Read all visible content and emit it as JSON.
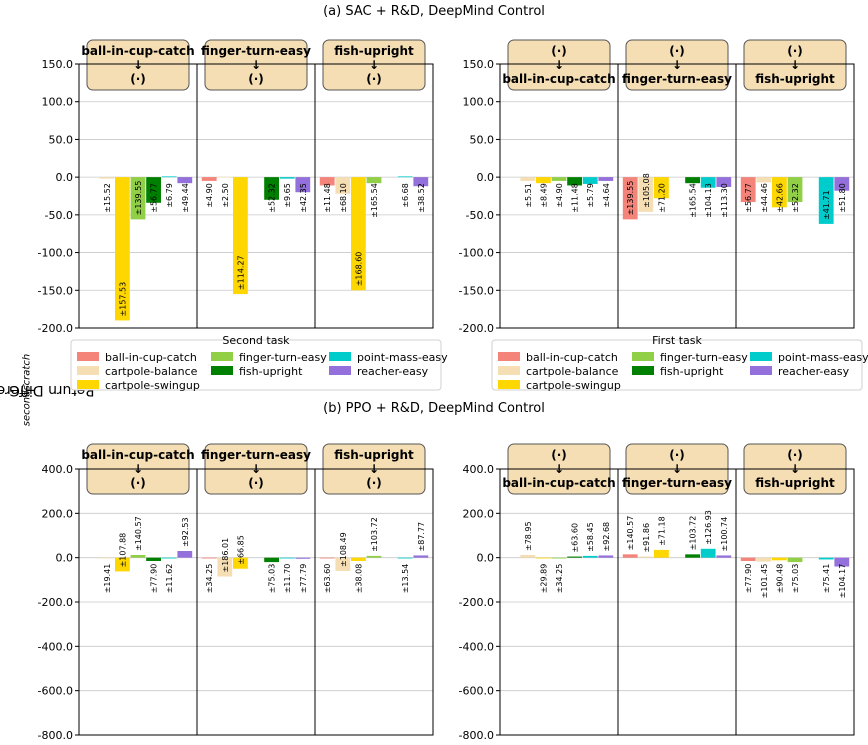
{
  "figure": {
    "ylabel": "Return Difference (G",
    "ylabel_sub1": "second",
    "ylabel_mid": " − G",
    "ylabel_sub2": "scratch",
    "ylabel_end": ")"
  },
  "colors": {
    "ball-in-cup-catch": "#f4847a",
    "cartpole-balance": "#f5deb3",
    "cartpole-swingup": "#ffd700",
    "finger-turn-easy": "#90cf46",
    "fish-upright": "#008000",
    "point-mass-easy": "#00cccc",
    "reacher-easy": "#9370db",
    "header_fill": "#f5deb3"
  },
  "rows": [
    {
      "title": "(a) SAC + R&D, DeepMind Control",
      "ylim": [
        -200,
        150
      ],
      "yticks": [
        150,
        100,
        50,
        0,
        -50,
        -100,
        -150,
        -200
      ],
      "ytick_labels": [
        "150.0",
        "100.0",
        "50.0",
        "0.0",
        "-50.0",
        "-100.0",
        "-150.0",
        "-200.0"
      ]
    },
    {
      "title": "(b) PPO + R&D, DeepMind Control",
      "ylim": [
        -800,
        450
      ],
      "yticks": [
        400,
        200,
        0,
        -200,
        -400,
        -600,
        -800
      ],
      "ytick_labels": [
        "400.0",
        "200.0",
        "0.0",
        "-200.0",
        "-400.0",
        "-600.0",
        "-800.0"
      ]
    }
  ],
  "legends": {
    "second": {
      "title": "Second task",
      "items": [
        "ball-in-cup-catch",
        "cartpole-balance",
        "cartpole-swingup",
        "finger-turn-easy",
        "fish-upright",
        "point-mass-easy",
        "reacher-easy"
      ]
    },
    "first": {
      "title": "First task",
      "items": [
        "ball-in-cup-catch",
        "cartpole-balance",
        "cartpole-swingup",
        "finger-turn-easy",
        "fish-upright",
        "point-mass-easy",
        "reacher-easy"
      ]
    }
  },
  "chart_data": [
    {
      "type": "bar",
      "title": "(a) SAC + R&D, DeepMind Control — second task varies",
      "row": 0,
      "col": 0,
      "ylabel": "Return Difference (G_second − G_scratch)",
      "ylim": [
        -200,
        150
      ],
      "series_names": [
        "ball-in-cup-catch",
        "cartpole-balance",
        "cartpole-swingup",
        "finger-turn-easy",
        "fish-upright",
        "point-mass-easy",
        "reacher-easy"
      ],
      "groups": [
        {
          "header": [
            "ball-in-cup-catch",
            "↓",
            "(·)"
          ],
          "values": [
            null,
            -2,
            -190,
            -56,
            -34,
            1,
            -8
          ],
          "errors": [
            "",
            "±15.52",
            "±157.53",
            "±139.55",
            "±56.77",
            "±6.79",
            "±49.44"
          ]
        },
        {
          "header": [
            "finger-turn-easy",
            "↓",
            "(·)"
          ],
          "values": [
            -5,
            0.5,
            -155,
            null,
            -30,
            -2,
            -20
          ],
          "errors": [
            "±4.90",
            "±2.50",
            "±114.27",
            "",
            "±52.32",
            "±9.65",
            "±42.35"
          ]
        },
        {
          "header": [
            "fish-upright",
            "↓",
            "(·)"
          ],
          "values": [
            -11,
            -22,
            -150,
            -8,
            null,
            1,
            -12
          ],
          "errors": [
            "±11.48",
            "±68.10",
            "±168.60",
            "±165.54",
            "",
            "±6.68",
            "±38.52"
          ]
        }
      ]
    },
    {
      "type": "bar",
      "title": "(a) SAC + R&D, DeepMind Control — first task varies",
      "row": 0,
      "col": 1,
      "ylim": [
        -200,
        150
      ],
      "series_names": [
        "ball-in-cup-catch",
        "cartpole-balance",
        "cartpole-swingup",
        "finger-turn-easy",
        "fish-upright",
        "point-mass-easy",
        "reacher-easy"
      ],
      "groups": [
        {
          "header": [
            "(·)",
            "↓",
            "ball-in-cup-catch"
          ],
          "values": [
            null,
            -5,
            -8,
            -5,
            -11,
            -9,
            -5
          ],
          "errors": [
            "",
            "±5.51",
            "±8.49",
            "±4.90",
            "±11.48",
            "±5.79",
            "±4.64"
          ]
        },
        {
          "header": [
            "(·)",
            "↓",
            "finger-turn-easy"
          ],
          "values": [
            -56,
            -46,
            -28,
            null,
            -8,
            -14,
            -13
          ],
          "errors": [
            "±139.55",
            "±105.08",
            "±71.20",
            "",
            "±165.54",
            "±104.13",
            "±113.30"
          ]
        },
        {
          "header": [
            "(·)",
            "↓",
            "fish-upright"
          ],
          "values": [
            -33,
            -7,
            -40,
            -33,
            null,
            -62,
            -18
          ],
          "errors": [
            "±56.77",
            "±44.46",
            "±42.66",
            "±52.32",
            "",
            "±41.71",
            "±51.80"
          ]
        }
      ]
    },
    {
      "type": "bar",
      "title": "(b) PPO + R&D, DeepMind Control — second task varies",
      "row": 1,
      "col": 0,
      "ylim": [
        -800,
        450
      ],
      "series_names": [
        "ball-in-cup-catch",
        "cartpole-balance",
        "cartpole-swingup",
        "finger-turn-easy",
        "fish-upright",
        "point-mass-easy",
        "reacher-easy"
      ],
      "groups": [
        {
          "header": [
            "ball-in-cup-catch",
            "↓",
            "(·)"
          ],
          "values": [
            null,
            -2,
            -62,
            12,
            -15,
            0,
            30
          ],
          "errors": [
            "",
            "±19.41",
            "±107.88",
            "±140.57",
            "±77.90",
            "±11.62",
            "±92.53"
          ]
        },
        {
          "header": [
            "finger-turn-easy",
            "↓",
            "(·)"
          ],
          "values": [
            -3,
            -85,
            -50,
            null,
            -20,
            -1,
            -5
          ],
          "errors": [
            "±34.25",
            "±186.01",
            "±66.85",
            "",
            "±75.03",
            "±11.70",
            "±77.79"
          ]
        },
        {
          "header": [
            "fish-upright",
            "↓",
            "(·)"
          ],
          "values": [
            -2,
            -60,
            -15,
            8,
            null,
            0,
            10
          ],
          "errors": [
            "±63.60",
            "±108.49",
            "±38.08",
            "±103.72",
            "",
            "±13.54",
            "±87.77"
          ]
        }
      ]
    },
    {
      "type": "bar",
      "title": "(b) PPO + R&D, DeepMind Control — first task varies",
      "row": 1,
      "col": 1,
      "ylim": [
        -800,
        450
      ],
      "series_names": [
        "ball-in-cup-catch",
        "cartpole-balance",
        "cartpole-swingup",
        "finger-turn-easy",
        "fish-upright",
        "point-mass-easy",
        "reacher-easy"
      ],
      "groups": [
        {
          "header": [
            "(·)",
            "↓",
            "ball-in-cup-catch"
          ],
          "values": [
            null,
            12,
            -2,
            -1,
            5,
            8,
            10
          ],
          "errors": [
            "",
            "±78.95",
            "±29.89",
            "±34.25",
            "±63.60",
            "±58.45",
            "±92.68"
          ]
        },
        {
          "header": [
            "(·)",
            "↓",
            "finger-turn-easy"
          ],
          "values": [
            15,
            5,
            35,
            null,
            15,
            40,
            10
          ],
          "errors": [
            "±140.57",
            "±91.86",
            "±71.18",
            "",
            "±103.72",
            "±126.93",
            "±100.74"
          ]
        },
        {
          "header": [
            "(·)",
            "↓",
            "fish-upright"
          ],
          "values": [
            -15,
            -18,
            -12,
            -20,
            null,
            -8,
            -40
          ],
          "errors": [
            "±77.90",
            "±101.45",
            "±90.48",
            "±75.03",
            "",
            "±75.41",
            "±104.17"
          ]
        }
      ]
    }
  ]
}
